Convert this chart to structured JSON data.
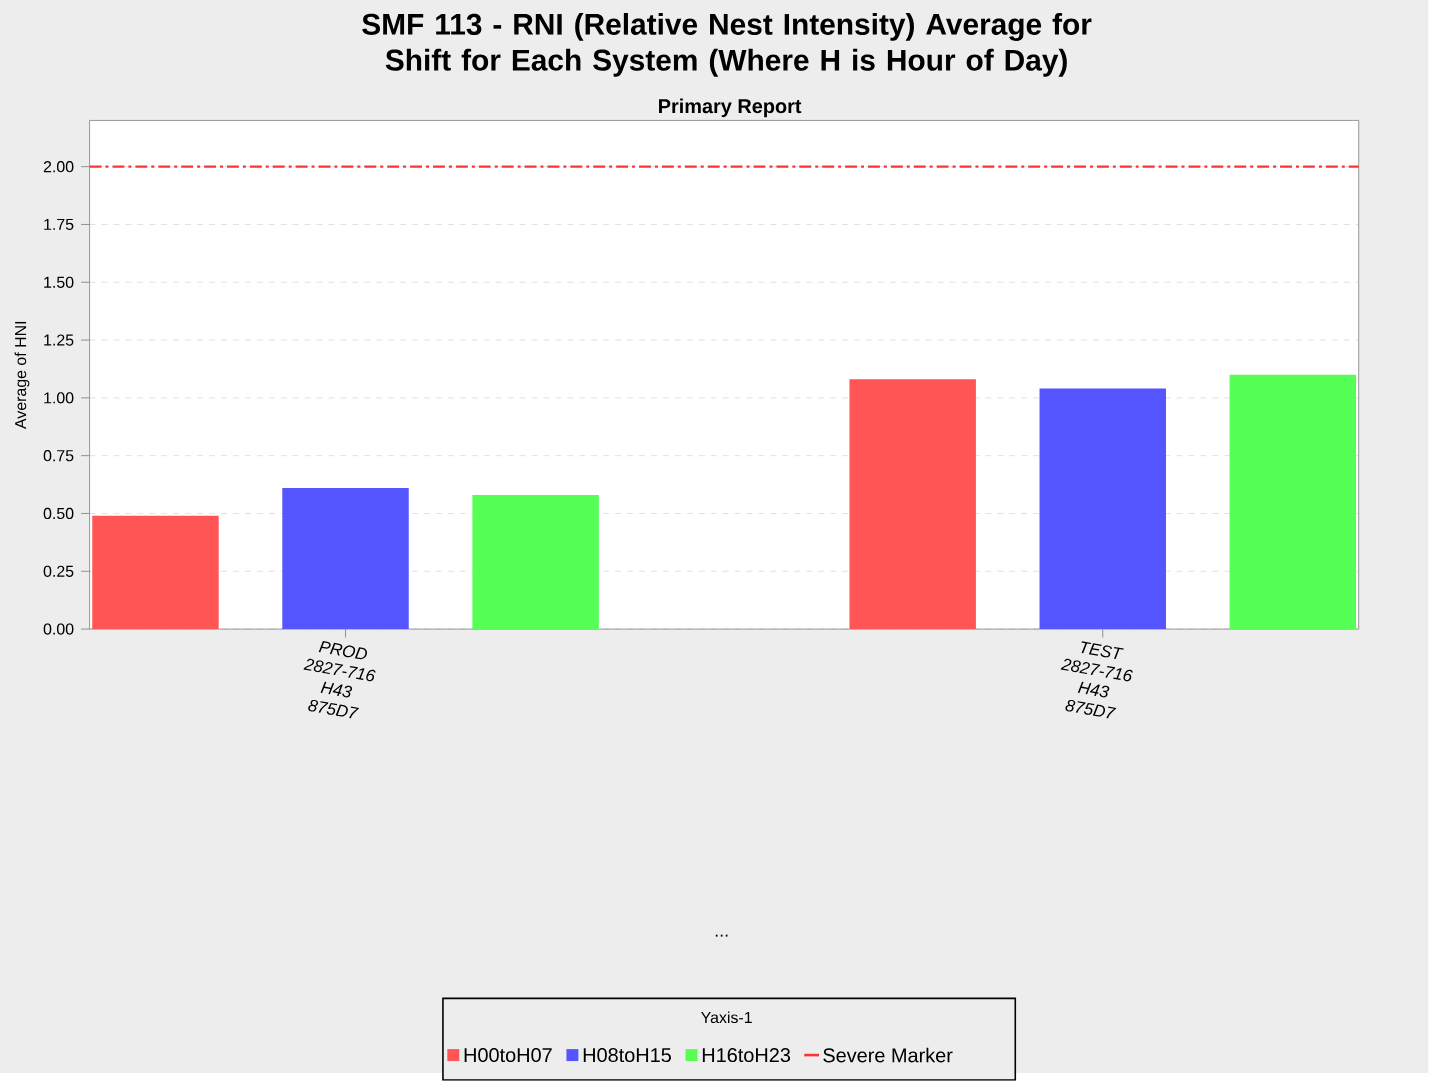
{
  "chart_data": {
    "type": "bar",
    "title": "SMF 113 - RNI (Relative Nest Intensity) Average for Shift for Each System (Where H is Hour of Day)",
    "subtitle": "Primary Report",
    "annotations": [
      "..."
    ],
    "ylabel": "Average of HNI",
    "legend_title": "Yaxis-1",
    "categories": [
      "PROD 2827-716 H43 875D7",
      "TEST 2827-716 H43 875D7"
    ],
    "series": [
      {
        "name": "H00toH07",
        "color": "#ff5555",
        "values": [
          0.49,
          1.08
        ]
      },
      {
        "name": "H08toH15",
        "color": "#5555ff",
        "values": [
          0.61,
          1.04
        ]
      },
      {
        "name": "H16toH23",
        "color": "#55ff55",
        "values": [
          0.58,
          1.1
        ]
      }
    ],
    "ylim": [
      0,
      2.2
    ],
    "yticks": [
      {
        "value": 0,
        "label": "0.00"
      },
      {
        "value": 0.25,
        "label": "0.25"
      },
      {
        "value": 0.5,
        "label": "0.50"
      },
      {
        "value": 0.75,
        "label": "0.75"
      },
      {
        "value": 1,
        "label": "1.00"
      },
      {
        "value": 1.25,
        "label": "1.25"
      },
      {
        "value": 1.5,
        "label": "1.50"
      },
      {
        "value": 1.75,
        "label": "1.75"
      },
      {
        "value": 2,
        "label": "2.00"
      }
    ],
    "ref_lines": [
      {
        "axis": "y",
        "value": 2.0,
        "label": "Severe Marker",
        "color": "#ff3333",
        "line_style": "dashdot"
      }
    ],
    "grid": "y",
    "legend": "bottom"
  }
}
